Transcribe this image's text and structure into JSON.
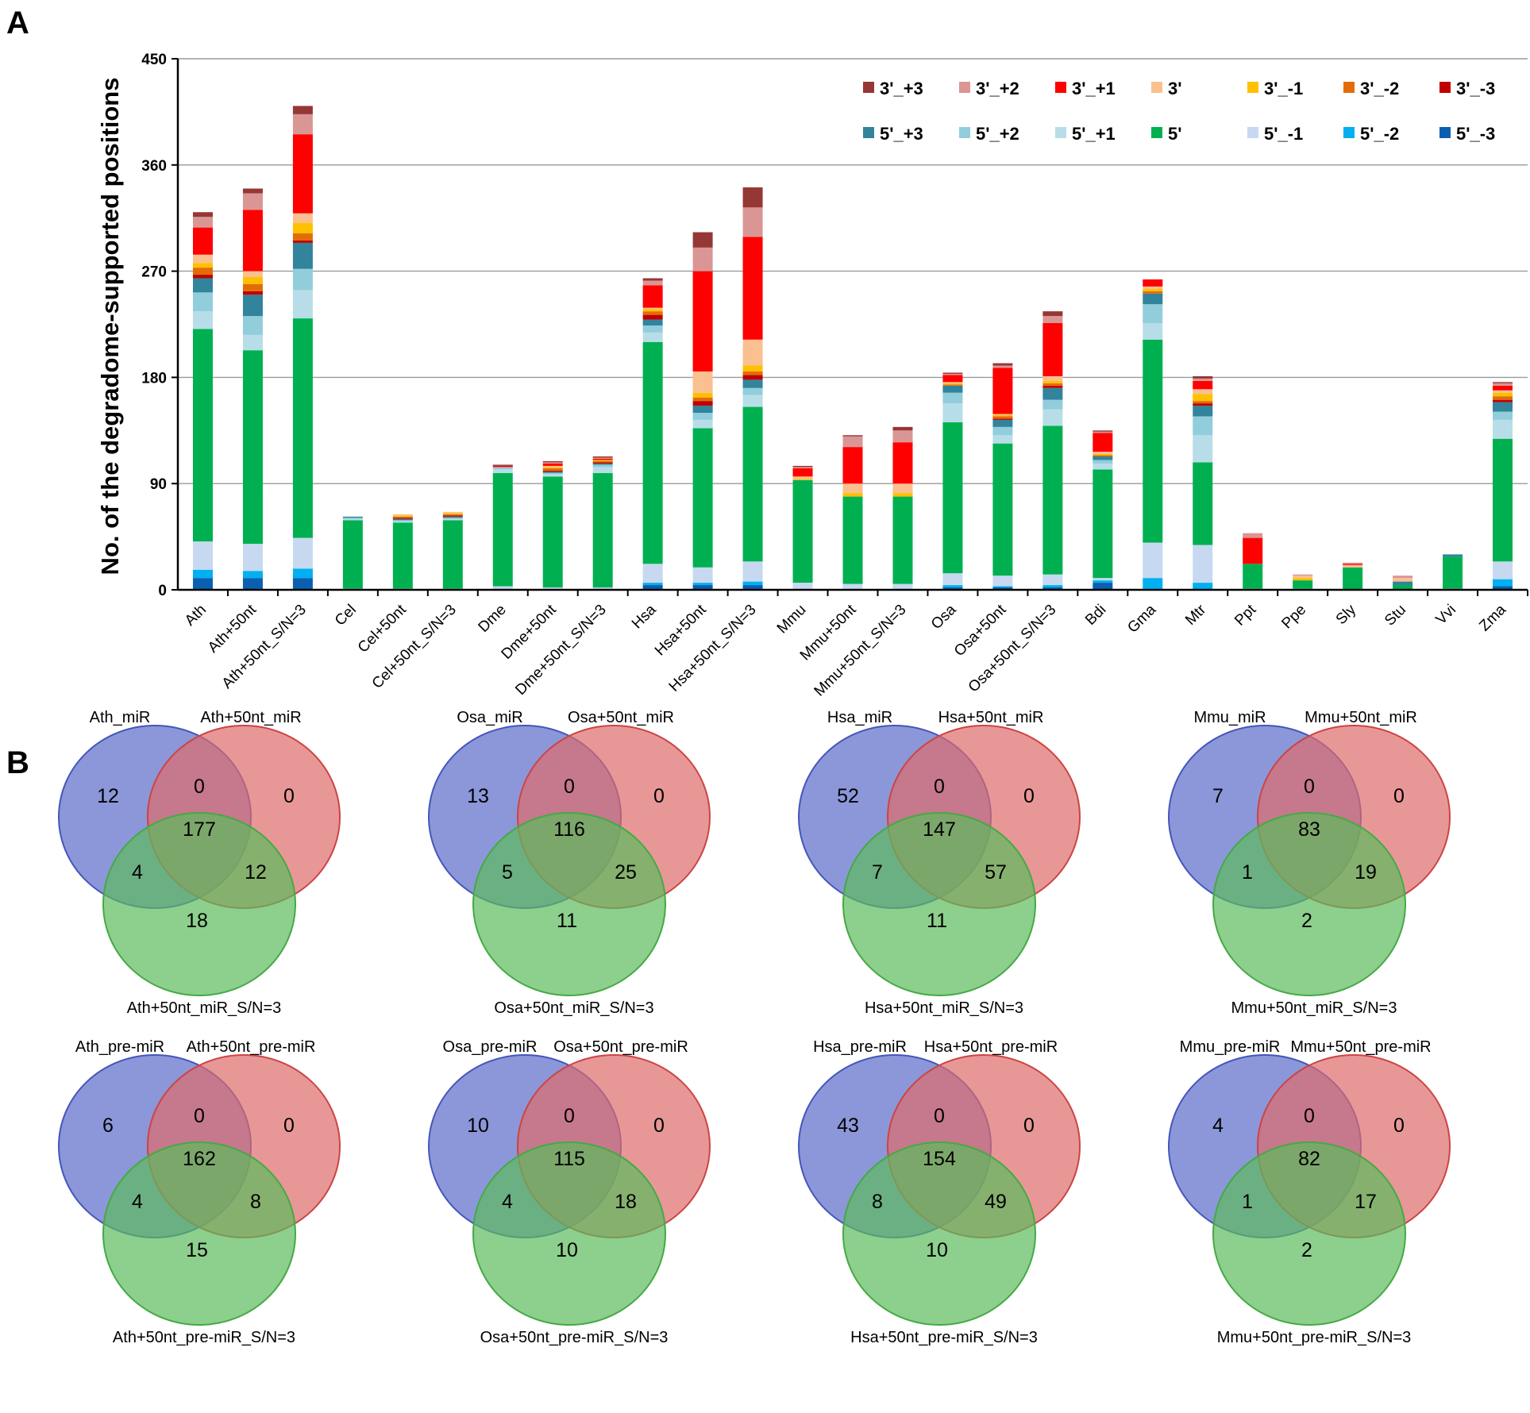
{
  "panel_labels": {
    "a": "A",
    "b": "B"
  },
  "chart_data": [
    {
      "type": "bar",
      "stacked": true,
      "ylabel": "No. of the degradome-supported positions",
      "ylim": [
        0,
        450
      ],
      "yticks": [
        0,
        90,
        180,
        270,
        360,
        450
      ],
      "grid": true,
      "legend_position": "top-right",
      "categories": [
        "Ath",
        "Ath+50nt",
        "Ath+50nt_S/N=3",
        "Cel",
        "Cel+50nt",
        "Cel+50nt_S/N=3",
        "Dme",
        "Dme+50nt",
        "Dme+50nt_S/N=3",
        "Hsa",
        "Hsa+50nt",
        "Hsa+50nt_S/N=3",
        "Mmu",
        "Mmu+50nt",
        "Mmu+50nt_S/N=3",
        "Osa",
        "Osa+50nt",
        "Osa+50nt_S/N=3",
        "Bdi",
        "Gma",
        "Mtr",
        "Ppt",
        "Ppe",
        "Sly",
        "Stu",
        "Vvi",
        "Zma"
      ],
      "series": [
        {
          "name": "5'_-3",
          "color": "#0b5fb0",
          "values": [
            10,
            10,
            10,
            0,
            0,
            0,
            0,
            0,
            0,
            4,
            4,
            4,
            0,
            0,
            0,
            2,
            2,
            2,
            6,
            0,
            0,
            0,
            0,
            0,
            0,
            0,
            3
          ]
        },
        {
          "name": "5'_-2",
          "color": "#00b0f0",
          "values": [
            7,
            6,
            8,
            0,
            0,
            0,
            0,
            0,
            0,
            2,
            2,
            3,
            0,
            0,
            0,
            2,
            1,
            2,
            2,
            10,
            6,
            0,
            0,
            0,
            0,
            0,
            6
          ]
        },
        {
          "name": "5'_-1",
          "color": "#c6d9f1",
          "values": [
            24,
            23,
            26,
            1,
            1,
            1,
            3,
            2,
            2,
            16,
            13,
            17,
            6,
            5,
            5,
            10,
            9,
            9,
            2,
            30,
            32,
            1,
            1,
            0,
            0,
            1,
            15
          ]
        },
        {
          "name": "5'",
          "color": "#00b050",
          "values": [
            180,
            164,
            186,
            58,
            56,
            58,
            96,
            94,
            97,
            188,
            118,
            131,
            87,
            74,
            74,
            128,
            112,
            126,
            92,
            172,
            70,
            21,
            7,
            19,
            4,
            27,
            104
          ]
        },
        {
          "name": "5'_+1",
          "color": "#b7dee8",
          "values": [
            15,
            13,
            24,
            1,
            1,
            1,
            3,
            2,
            5,
            8,
            7,
            10,
            0,
            0,
            0,
            16,
            7,
            14,
            5,
            14,
            23,
            0,
            0,
            0,
            0,
            0,
            16
          ]
        },
        {
          "name": "5'_+2",
          "color": "#92cddc",
          "values": [
            16,
            16,
            18,
            1,
            1,
            1,
            2,
            1,
            2,
            6,
            6,
            6,
            0,
            0,
            0,
            9,
            7,
            8,
            3,
            16,
            16,
            0,
            0,
            0,
            0,
            0,
            7
          ]
        },
        {
          "name": "5'_+3",
          "color": "#31849b",
          "values": [
            12,
            18,
            22,
            1,
            1,
            1,
            0,
            1,
            1,
            5,
            6,
            7,
            0,
            0,
            0,
            6,
            6,
            10,
            3,
            9,
            9,
            0,
            0,
            0,
            3,
            2,
            8
          ]
        },
        {
          "name": "3'_-3",
          "color": "#c00000",
          "values": [
            3,
            3,
            2,
            0,
            1,
            1,
            0,
            1,
            1,
            4,
            4,
            4,
            0,
            0,
            0,
            0,
            1,
            2,
            0,
            0,
            2,
            0,
            0,
            0,
            0,
            0,
            2
          ]
        },
        {
          "name": "3'_-2",
          "color": "#e36c09",
          "values": [
            6,
            6,
            6,
            0,
            1,
            1,
            0,
            2,
            1,
            3,
            3,
            3,
            0,
            0,
            0,
            1,
            2,
            2,
            1,
            2,
            2,
            0,
            0,
            0,
            0,
            0,
            3
          ]
        },
        {
          "name": "3'_-1",
          "color": "#ffc000",
          "values": [
            4,
            6,
            9,
            0,
            1,
            1,
            0,
            1,
            1,
            2,
            4,
            5,
            1,
            3,
            3,
            1,
            1,
            2,
            1,
            2,
            6,
            0,
            2,
            0,
            0,
            0,
            3
          ]
        },
        {
          "name": "3'",
          "color": "#fac090",
          "values": [
            7,
            5,
            8,
            0,
            1,
            1,
            0,
            1,
            0,
            1,
            18,
            22,
            2,
            8,
            8,
            1,
            1,
            4,
            2,
            2,
            4,
            0,
            2,
            2,
            3,
            0,
            2
          ]
        },
        {
          "name": "3'_+1",
          "color": "#ff0000",
          "values": [
            23,
            52,
            67,
            0,
            0,
            0,
            1,
            2,
            1,
            19,
            85,
            87,
            7,
            31,
            35,
            6,
            39,
            45,
            16,
            6,
            7,
            22,
            0,
            1,
            0,
            0,
            4
          ]
        },
        {
          "name": "3'_+2",
          "color": "#da9694",
          "values": [
            9,
            14,
            17,
            0,
            0,
            0,
            0,
            1,
            1,
            4,
            20,
            25,
            1,
            9,
            10,
            1,
            2,
            6,
            1,
            0,
            2,
            4,
            1,
            1,
            2,
            0,
            2
          ]
        },
        {
          "name": "3'_+3",
          "color": "#953735",
          "values": [
            4,
            4,
            7,
            0,
            0,
            0,
            1,
            1,
            1,
            2,
            13,
            17,
            1,
            1,
            3,
            1,
            2,
            4,
            1,
            0,
            2,
            0,
            0,
            0,
            0,
            0,
            1
          ]
        }
      ],
      "legend_order": [
        "3'_+3",
        "3'_+2",
        "3'_+1",
        "3'",
        "3'_-1",
        "3'_-2",
        "3'_-3",
        "5'_+3",
        "5'_+2",
        "5'_+1",
        "5'",
        "5'_-1",
        "5'_-2",
        "5'_-3"
      ]
    },
    {
      "type": "venn",
      "colors": {
        "set_a": "#5b6bc9",
        "set_b": "#de6b6b",
        "set_c": "#5cba5c"
      },
      "diagrams": [
        {
          "labels": [
            "Ath_miR",
            "Ath+50nt_miR",
            "Ath+50nt_miR_S/N=3"
          ],
          "counts": {
            "a": "12",
            "b": "0",
            "ab": "0",
            "abc": "177",
            "ac": "4",
            "bc": "12",
            "c": "18"
          }
        },
        {
          "labels": [
            "Osa_miR",
            "Osa+50nt_miR",
            "Osa+50nt_miR_S/N=3"
          ],
          "counts": {
            "a": "13",
            "b": "0",
            "ab": "0",
            "abc": "116",
            "ac": "5",
            "bc": "25",
            "c": "11"
          }
        },
        {
          "labels": [
            "Hsa_miR",
            "Hsa+50nt_miR",
            "Hsa+50nt_miR_S/N=3"
          ],
          "counts": {
            "a": "52",
            "b": "0",
            "ab": "0",
            "abc": "147",
            "ac": "7",
            "bc": "57",
            "c": "11"
          }
        },
        {
          "labels": [
            "Mmu_miR",
            "Mmu+50nt_miR",
            "Mmu+50nt_miR_S/N=3"
          ],
          "counts": {
            "a": "7",
            "b": "0",
            "ab": "0",
            "abc": "83",
            "ac": "1",
            "bc": "19",
            "c": "2"
          }
        },
        {
          "labels": [
            "Ath_pre-miR",
            "Ath+50nt_pre-miR",
            "Ath+50nt_pre-miR_S/N=3"
          ],
          "counts": {
            "a": "6",
            "b": "0",
            "ab": "0",
            "abc": "162",
            "ac": "4",
            "bc": "8",
            "c": "15"
          }
        },
        {
          "labels": [
            "Osa_pre-miR",
            "Osa+50nt_pre-miR",
            "Osa+50nt_pre-miR_S/N=3"
          ],
          "counts": {
            "a": "10",
            "b": "0",
            "ab": "0",
            "abc": "115",
            "ac": "4",
            "bc": "18",
            "c": "10"
          }
        },
        {
          "labels": [
            "Hsa_pre-miR",
            "Hsa+50nt_pre-miR",
            "Hsa+50nt_pre-miR_S/N=3"
          ],
          "counts": {
            "a": "43",
            "b": "0",
            "ab": "0",
            "abc": "154",
            "ac": "8",
            "bc": "49",
            "c": "10"
          }
        },
        {
          "labels": [
            "Mmu_pre-miR",
            "Mmu+50nt_pre-miR",
            "Mmu+50nt_pre-miR_S/N=3"
          ],
          "counts": {
            "a": "4",
            "b": "0",
            "ab": "0",
            "abc": "82",
            "ac": "1",
            "bc": "17",
            "c": "2"
          }
        }
      ]
    }
  ]
}
